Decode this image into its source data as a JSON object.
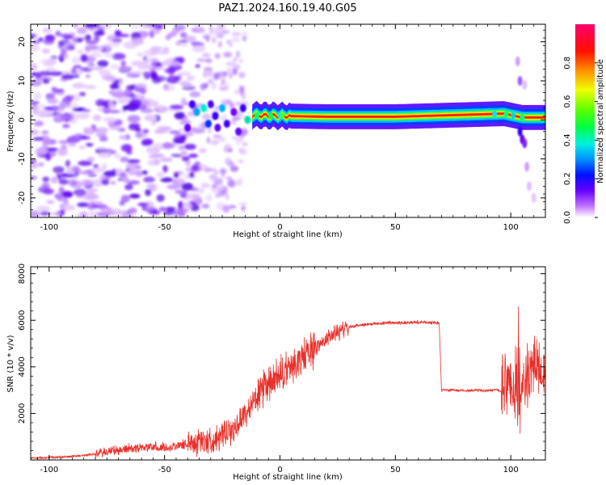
{
  "title": "PAZ1.2024.160.19.40.G05",
  "colors": {
    "snr_line": "#e8302a",
    "axis": "#000000",
    "background": "#ffffff"
  },
  "chart_data": [
    {
      "type": "heatmap",
      "xlabel": "Height of straight line (km)",
      "ylabel": "Frequency (Hz)",
      "xlim": [
        -108,
        115
      ],
      "ylim": [
        -25,
        24.5
      ],
      "xticks": [
        -100,
        -50,
        0,
        50,
        100
      ],
      "yticks": [
        -20,
        -10,
        0,
        10,
        20
      ],
      "description_of_content": "",
      "ridge": {
        "x_from": -12,
        "x_to": 115,
        "freq_points": [
          {
            "x": -12,
            "f": 1.2
          },
          {
            "x": 0,
            "f": 1.0
          },
          {
            "x": 20,
            "f": 0.8
          },
          {
            "x": 50,
            "f": 0.8
          },
          {
            "x": 80,
            "f": 1.3
          },
          {
            "x": 97,
            "f": 1.6
          },
          {
            "x": 105,
            "f": 0.6
          },
          {
            "x": 115,
            "f": 0.6
          }
        ]
      },
      "colorbar": {
        "label": "Normalized spectral amplitude",
        "range": [
          0,
          1
        ],
        "ticks": [
          0.0,
          0.2,
          0.4,
          0.6,
          0.8
        ],
        "tick_labels": [
          "0.0",
          "0.2",
          "0.4",
          "0.6",
          "0.8"
        ],
        "colormap": "gist_rainbow-like (white to purple to blue to cyan to green to yellow to red to magenta)"
      }
    },
    {
      "type": "line",
      "xlabel": "Height of straight line (km)",
      "ylabel": "SNR (10 * v/v)",
      "xlim": [
        -108,
        115
      ],
      "ylim": [
        0,
        8300
      ],
      "xticks": [
        -100,
        -50,
        0,
        50,
        100
      ],
      "yticks": [
        2000,
        4000,
        6000,
        8000
      ],
      "series": [
        {
          "color": "#e8302a",
          "x": [
            -108,
            -100,
            -90,
            -80,
            -75,
            -70,
            -65,
            -60,
            -55,
            -50,
            -45,
            -40,
            -35,
            -30,
            -25,
            -20,
            -15,
            -10,
            -5,
            0,
            5,
            10,
            15,
            20,
            25,
            30,
            35,
            40,
            45,
            50,
            55,
            60,
            65,
            69,
            70,
            75,
            80,
            85,
            90,
            95,
            96,
            100,
            103,
            105,
            107,
            110,
            115
          ],
          "y": [
            80,
            100,
            150,
            250,
            350,
            420,
            500,
            550,
            560,
            520,
            600,
            700,
            800,
            850,
            1000,
            1300,
            2000,
            2700,
            3200,
            3600,
            4000,
            4400,
            4800,
            5200,
            5500,
            5700,
            5800,
            5850,
            5880,
            5900,
            5900,
            5920,
            5900,
            5880,
            3000,
            3000,
            2980,
            3000,
            2980,
            3000,
            2900,
            3500,
            1500,
            3000,
            3500,
            4200,
            4000
          ]
        }
      ]
    }
  ]
}
